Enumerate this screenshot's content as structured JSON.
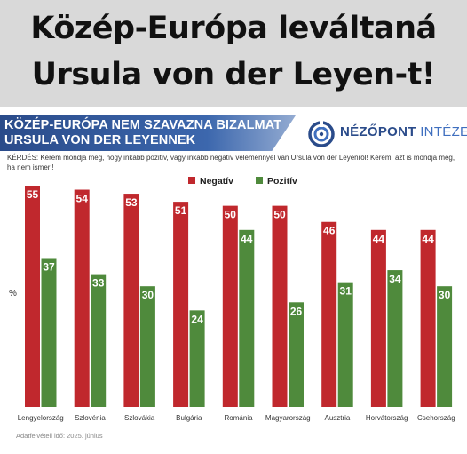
{
  "headline": {
    "line1": "Közép-Európa leváltaná",
    "line2": "Ursula von der Leyen-t!"
  },
  "header": {
    "title_line1": "KÖZÉP-EURÓPA NEM SZAVAZNA BIZALMAT",
    "title_line2": "URSULA VON DER LEYENNEK",
    "brand_part1": "NÉZŐPONT",
    "brand_part2": "INTÉZET",
    "logo_icon": "nezopont-logo-icon"
  },
  "question": "KÉRDÉS: Kérem mondja meg, hogy inkább pozitív, vagy inkább negatív véleménnyel van Ursula von der Leyenről! Kérem, azt is mondja meg, ha nem ismeri!",
  "source": "Adatfelvételi idő: 2025. június",
  "colors": {
    "negative": "#c0282d",
    "positive": "#4f8a3c",
    "title_bar": "#2e52a0",
    "brand": "#2a4b8a"
  },
  "chart_data": {
    "type": "bar",
    "ylabel": "%",
    "categories": [
      "Lengyelország",
      "Szlovénia",
      "Szlovákia",
      "Bulgária",
      "Románia",
      "Magyarország",
      "Ausztria",
      "Horvátország",
      "Csehország"
    ],
    "series": [
      {
        "name": "Negatív",
        "values": [
          55,
          54,
          53,
          51,
          50,
          50,
          46,
          44,
          44
        ]
      },
      {
        "name": "Pozitív",
        "values": [
          37,
          33,
          30,
          24,
          44,
          26,
          31,
          34,
          30
        ]
      }
    ],
    "ylim": [
      0,
      55
    ],
    "legend": "top-center",
    "grid": false,
    "data_labels": true
  }
}
